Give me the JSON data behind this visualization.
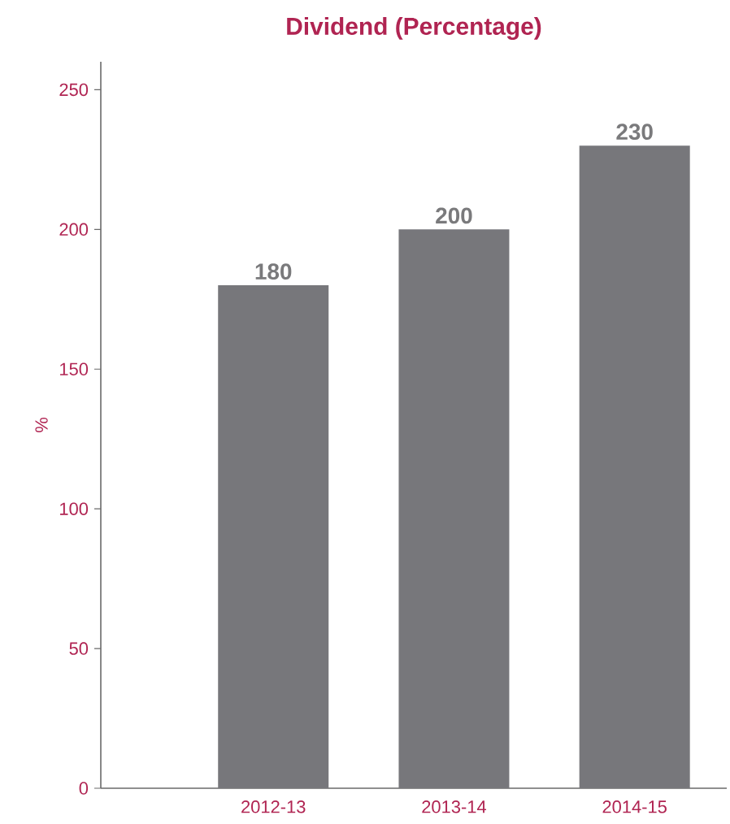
{
  "chart_data": {
    "type": "bar",
    "title": "Dividend (Percentage)",
    "ylabel": "%",
    "categories": [
      "2012-13",
      "2013-14",
      "2014-15"
    ],
    "values": [
      180,
      200,
      230
    ],
    "color": "#77777b",
    "ylim": [
      0,
      260
    ],
    "yticks": [
      0,
      50,
      100,
      150,
      200,
      250
    ],
    "grid": false,
    "data_labels": true
  }
}
